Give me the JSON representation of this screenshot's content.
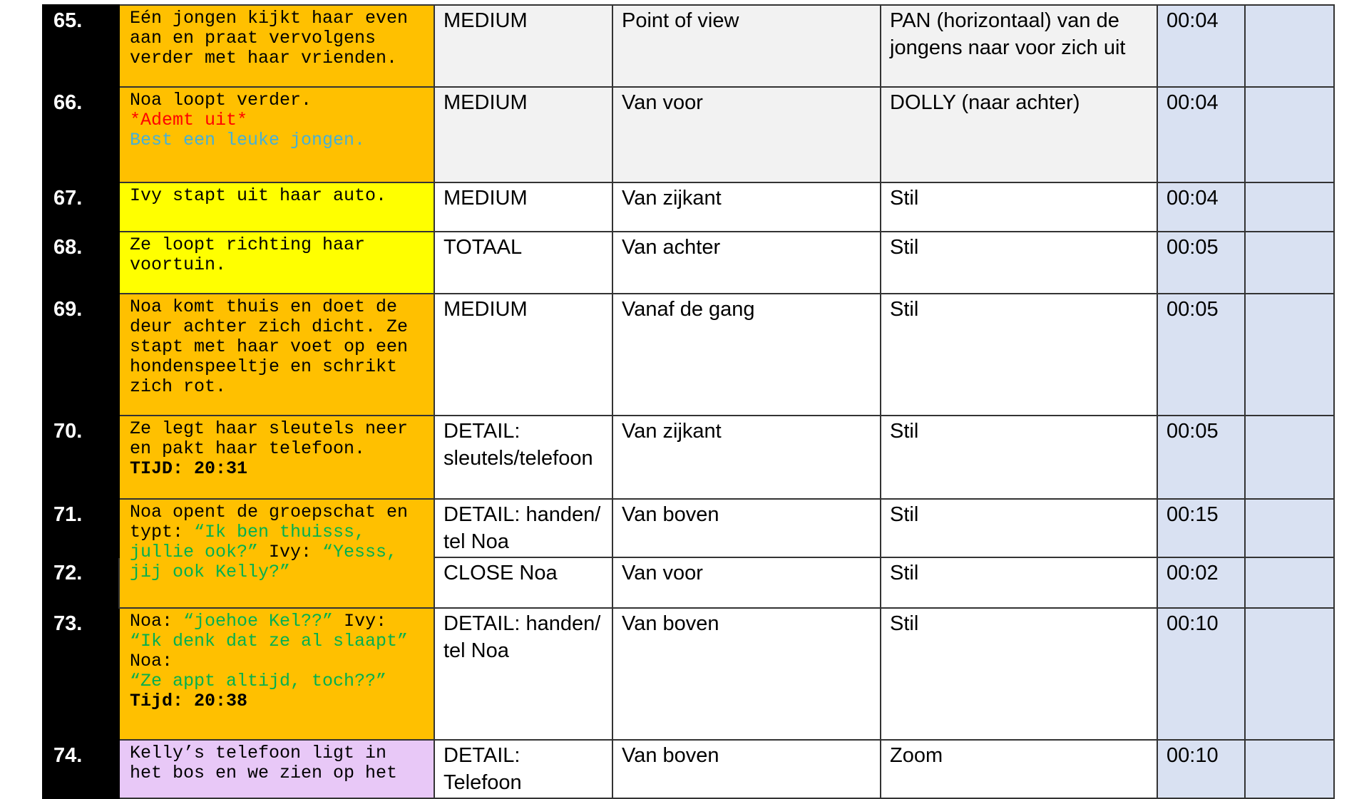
{
  "rows": [
    {
      "number": "65.",
      "fill": "#ffc000",
      "shade": "#f2f2f2",
      "description": [
        {
          "text": "Eén jongen kijkt haar even aan en praat vervolgens verder met haar vrienden."
        }
      ],
      "shot": "MEDIUM",
      "angle": "Point of view",
      "movement": "PAN (horizontaal) van de jongens naar voor zich uit",
      "time": "00:04"
    },
    {
      "number": "66.",
      "fill": "#ffc000",
      "shade": "#f2f2f2",
      "description": [
        {
          "text": "Noa loopt verder."
        },
        {
          "text": "*Ademt uit*",
          "color": "#ff0000",
          "newline": true
        },
        {
          "text": "Best een leuke jongen.",
          "color": "#45b0d8",
          "newline": true
        }
      ],
      "shot": "MEDIUM",
      "angle": "Van voor",
      "movement": "DOLLY (naar achter)",
      "time": "00:04"
    },
    {
      "number": "67.",
      "fill": "#ffff00",
      "shade": "#ffffff",
      "description": [
        {
          "text": "Ivy stapt uit haar auto."
        }
      ],
      "shot": "MEDIUM",
      "angle": "Van zijkant",
      "movement": "Stil",
      "time": "00:04"
    },
    {
      "number": "68.",
      "fill": "#ffff00",
      "shade": "#ffffff",
      "description": [
        {
          "text": "Ze loopt richting haar voortuin."
        }
      ],
      "shot": "TOTAAL",
      "angle": "Van achter",
      "movement": "Stil",
      "time": "00:05"
    },
    {
      "number": "69.",
      "fill": "#ffc000",
      "shade": "#ffffff",
      "description": [
        {
          "text": "Noa komt thuis en doet de deur achter zich dicht. Ze stapt met haar voet op een hondenspeeltje en schrikt zich rot."
        }
      ],
      "shot": "MEDIUM",
      "angle": "Vanaf de gang",
      "movement": "Stil",
      "time": "00:05"
    },
    {
      "number": "70.",
      "fill": "#ffc000",
      "shade": "#ffffff",
      "description": [
        {
          "text": "Ze legt haar sleutels neer en pakt haar telefoon."
        },
        {
          "text": "TIJD: 20:31",
          "bold": true,
          "newline": true
        }
      ],
      "shot": "DETAIL: sleutels/telefoon",
      "angle": "Van zijkant",
      "movement": "Stil",
      "time": "00:05"
    },
    {
      "number": "71.",
      "fill": "#ffc000",
      "shade": "#ffffff",
      "description": [
        {
          "text": "Noa opent de groepschat en typt: "
        },
        {
          "text": "“Ik ben thuisss, jullie ook?”",
          "color": "#00b050"
        },
        {
          "text": " Ivy: "
        },
        {
          "text": "“Yesss, jij ook Kelly?”",
          "color": "#00b050"
        }
      ],
      "shot": "DETAIL: handen/ tel Noa",
      "angle": "Van boven",
      "movement": "Stil",
      "time": "00:15"
    },
    {
      "number": "72.",
      "fill": "#ffc000",
      "shade": "#ffffff",
      "shot": "CLOSE Noa",
      "angle": "Van voor",
      "movement": "Stil",
      "time": "00:02"
    },
    {
      "number": "73.",
      "fill": "#ffc000",
      "shade": "#ffffff",
      "description": [
        {
          "text": "Noa: "
        },
        {
          "text": "“joehoe Kel??”",
          "color": "#00b050"
        },
        {
          "text": " Ivy:"
        },
        {
          "text": "“Ik denk dat ze al slaapt”",
          "color": "#00b050",
          "newline": true
        },
        {
          "text": "Noa: ",
          "newline": true
        },
        {
          "text": "“Ze appt altijd, toch??”",
          "color": "#00b050"
        },
        {
          "text": "Tijd: 20:38",
          "bold": true,
          "newline": true
        }
      ],
      "shot": "DETAIL: handen/ tel Noa",
      "angle": "Van boven",
      "movement": "Stil",
      "time": "00:10"
    },
    {
      "number": "74.",
      "fill": "#e8c8f7",
      "shade": "#ffffff",
      "description": [
        {
          "text": "Kelly’s telefoon ligt in het bos en we zien op het"
        }
      ],
      "shot": "DETAIL: Telefoon",
      "angle": "Van boven",
      "movement": "Zoom",
      "time": "00:10"
    }
  ]
}
